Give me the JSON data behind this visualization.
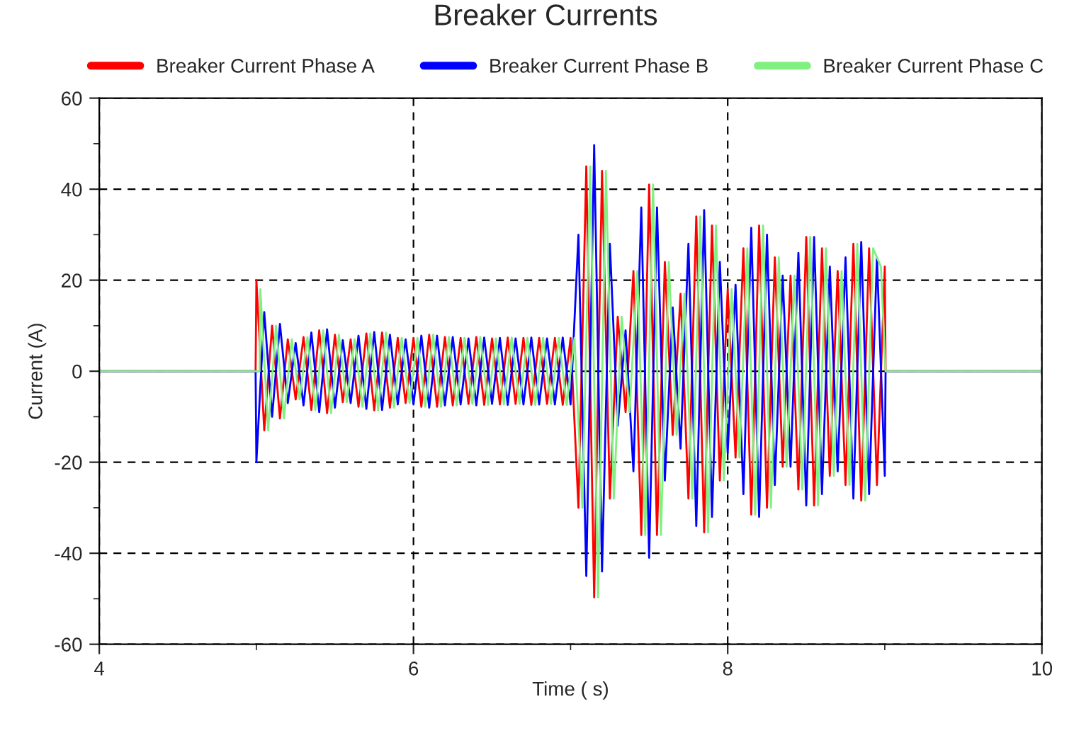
{
  "chart_data": {
    "type": "line",
    "title": "Breaker Currents",
    "xlabel": "Time ( s)",
    "ylabel": "Current (A)",
    "xlim": [
      4,
      10
    ],
    "xticks": [
      4,
      {
        "value": 5,
        "label": null
      },
      6,
      {
        "value": 7,
        "label": null
      },
      8,
      {
        "value": 9,
        "label": null
      },
      10
    ],
    "ylim": [
      -60,
      60
    ],
    "yticks": [
      -60,
      {
        "value": -50,
        "label": null
      },
      -40,
      {
        "value": -30,
        "label": null
      },
      -20,
      {
        "value": -10,
        "label": null
      },
      0,
      {
        "value": 10,
        "label": null
      },
      20,
      {
        "value": 30,
        "label": null
      },
      40,
      {
        "value": 50,
        "label": null
      },
      60
    ],
    "grid": true,
    "legend": "top",
    "line_style": "solid",
    "marker": "none",
    "series": [
      {
        "name": "Breaker Current Phase A",
        "color": "#ff0000",
        "x": [
          4,
          4.995,
          5.0,
          5.05,
          5.1,
          5.15,
          5.2,
          5.25,
          5.3,
          5.35,
          5.4,
          5.45,
          5.5,
          5.55,
          5.6,
          5.65,
          5.7,
          5.75,
          5.8,
          5.85,
          5.9,
          5.95,
          6.0,
          6.05,
          6.1,
          6.15,
          6.2,
          6.25,
          6.3,
          6.35,
          6.4,
          6.45,
          6.5,
          6.55,
          6.6,
          6.65,
          6.7,
          6.75,
          6.8,
          6.85,
          6.9,
          6.95,
          7.0,
          7.05,
          7.1,
          7.15,
          7.2,
          7.25,
          7.3,
          7.35,
          7.4,
          7.45,
          7.5,
          7.55,
          7.6,
          7.65,
          7.7,
          7.75,
          7.8,
          7.85,
          7.9,
          7.95,
          8.0,
          8.05,
          8.1,
          8.15,
          8.2,
          8.25,
          8.3,
          8.35,
          8.4,
          8.45,
          8.5,
          8.55,
          8.6,
          8.65,
          8.7,
          8.75,
          8.8,
          8.85,
          8.9,
          8.95,
          9.0,
          9.005,
          10
        ],
        "values": [
          0,
          0,
          20,
          -13,
          10,
          -10.4,
          7,
          -6.2,
          7.5,
          -8.5,
          9,
          -9.2,
          8,
          -6.8,
          7,
          -7.8,
          8.3,
          -8.6,
          8.5,
          -8,
          7.3,
          -7,
          7.3,
          -7.8,
          8,
          -7.8,
          7.5,
          -7.5,
          7.3,
          -7.2,
          7.5,
          -7.4,
          7.2,
          -7.3,
          7.4,
          -7.2,
          7.3,
          -7.4,
          7.3,
          -7.2,
          7.3,
          -7.4,
          7.3,
          -30,
          45,
          -49.7,
          44,
          -28,
          12,
          -9,
          22,
          -36,
          41,
          -36,
          24,
          -14,
          17,
          -28,
          34,
          -35.4,
          32,
          -24,
          18,
          -19,
          27,
          -31.5,
          32,
          -30,
          25,
          -21,
          21,
          -26,
          29.5,
          -29.5,
          27,
          -23,
          22,
          -25,
          28,
          -28.4,
          27,
          -25,
          23,
          0,
          0
        ]
      },
      {
        "name": "Breaker Current Phase B",
        "color": "#0000ff",
        "x": [
          4,
          4.995,
          5.0,
          5.05,
          5.1,
          5.15,
          5.2,
          5.25,
          5.3,
          5.35,
          5.4,
          5.45,
          5.5,
          5.55,
          5.6,
          5.65,
          5.7,
          5.75,
          5.8,
          5.85,
          5.9,
          5.95,
          6.0,
          6.05,
          6.1,
          6.15,
          6.2,
          6.25,
          6.3,
          6.35,
          6.4,
          6.45,
          6.5,
          6.55,
          6.6,
          6.65,
          6.7,
          6.75,
          6.8,
          6.85,
          6.9,
          6.95,
          7.0,
          7.05,
          7.1,
          7.15,
          7.2,
          7.25,
          7.3,
          7.35,
          7.4,
          7.45,
          7.5,
          7.55,
          7.6,
          7.65,
          7.7,
          7.75,
          7.8,
          7.85,
          7.9,
          7.95,
          8.0,
          8.05,
          8.1,
          8.15,
          8.2,
          8.25,
          8.3,
          8.35,
          8.4,
          8.45,
          8.5,
          8.55,
          8.6,
          8.65,
          8.7,
          8.75,
          8.8,
          8.85,
          8.9,
          8.95,
          9.0,
          9.005,
          10
        ],
        "values": [
          0,
          0,
          -20,
          13,
          -10,
          10.4,
          -7,
          6.2,
          -7.5,
          8.5,
          -9,
          9.2,
          -8,
          6.8,
          -7,
          7.8,
          -8.3,
          8.6,
          -8.5,
          8,
          -7.3,
          7,
          -7.3,
          7.8,
          -8,
          7.8,
          -7.5,
          7.5,
          -7.3,
          7.2,
          -7.5,
          7.4,
          -7.2,
          7.3,
          -7.4,
          7.2,
          -7.3,
          7.4,
          -7.3,
          7.2,
          -7.3,
          7.4,
          -7.3,
          30,
          -45,
          49.7,
          -44,
          28,
          -12,
          9,
          -22,
          36,
          -41,
          36,
          -24,
          14,
          -17,
          28,
          -34,
          35.4,
          -32,
          24,
          -18,
          19,
          -27,
          31.5,
          -32,
          30,
          -25,
          21,
          -21,
          26,
          -29.5,
          29.5,
          -27,
          23,
          -22,
          25,
          -28,
          28.4,
          -27,
          25,
          -23,
          0,
          0
        ]
      },
      {
        "name": "Breaker Current Phase C",
        "color": "#80f080",
        "x": [
          4,
          5.02,
          5.025,
          5.075,
          5.125,
          5.175,
          5.225,
          5.275,
          5.325,
          5.375,
          5.425,
          5.475,
          5.525,
          5.575,
          5.625,
          5.675,
          5.725,
          5.775,
          5.825,
          5.875,
          5.925,
          5.975,
          6.025,
          6.075,
          6.125,
          6.175,
          6.225,
          6.275,
          6.325,
          6.375,
          6.425,
          6.475,
          6.525,
          6.575,
          6.625,
          6.675,
          6.725,
          6.775,
          6.825,
          6.875,
          6.925,
          6.975,
          7.025,
          7.075,
          7.125,
          7.175,
          7.225,
          7.275,
          7.325,
          7.375,
          7.425,
          7.475,
          7.525,
          7.575,
          7.625,
          7.675,
          7.725,
          7.775,
          7.825,
          7.875,
          7.925,
          7.975,
          8.025,
          8.075,
          8.125,
          8.175,
          8.225,
          8.275,
          8.325,
          8.375,
          8.425,
          8.475,
          8.525,
          8.575,
          8.625,
          8.675,
          8.725,
          8.775,
          8.825,
          8.875,
          8.925,
          8.975,
          9.005,
          10
        ],
        "values": [
          0,
          0,
          18,
          -13,
          10,
          -10.4,
          7,
          -6.2,
          7.5,
          -8.5,
          9,
          -9.2,
          8,
          -6.8,
          7,
          -7.8,
          8.3,
          -8.6,
          8.5,
          -8,
          7.3,
          -7,
          7.3,
          -7.8,
          8,
          -7.8,
          7.5,
          -7.5,
          7.3,
          -7.2,
          7.5,
          -7.4,
          7.2,
          -7.3,
          7.4,
          -7.2,
          7.3,
          -7.4,
          7.3,
          -7.2,
          7.3,
          -7.4,
          7.3,
          -30,
          45,
          -49.7,
          44,
          -28,
          12,
          -9,
          22,
          -36,
          41,
          -36,
          24,
          -14,
          17,
          -28,
          34,
          -35.4,
          32,
          -24,
          18,
          -19,
          27,
          -31.5,
          32,
          -30,
          25,
          -21,
          21,
          -26,
          29.5,
          -29.5,
          27,
          -23,
          22,
          -25,
          28,
          -28.4,
          27,
          23,
          0,
          0
        ]
      }
    ]
  }
}
